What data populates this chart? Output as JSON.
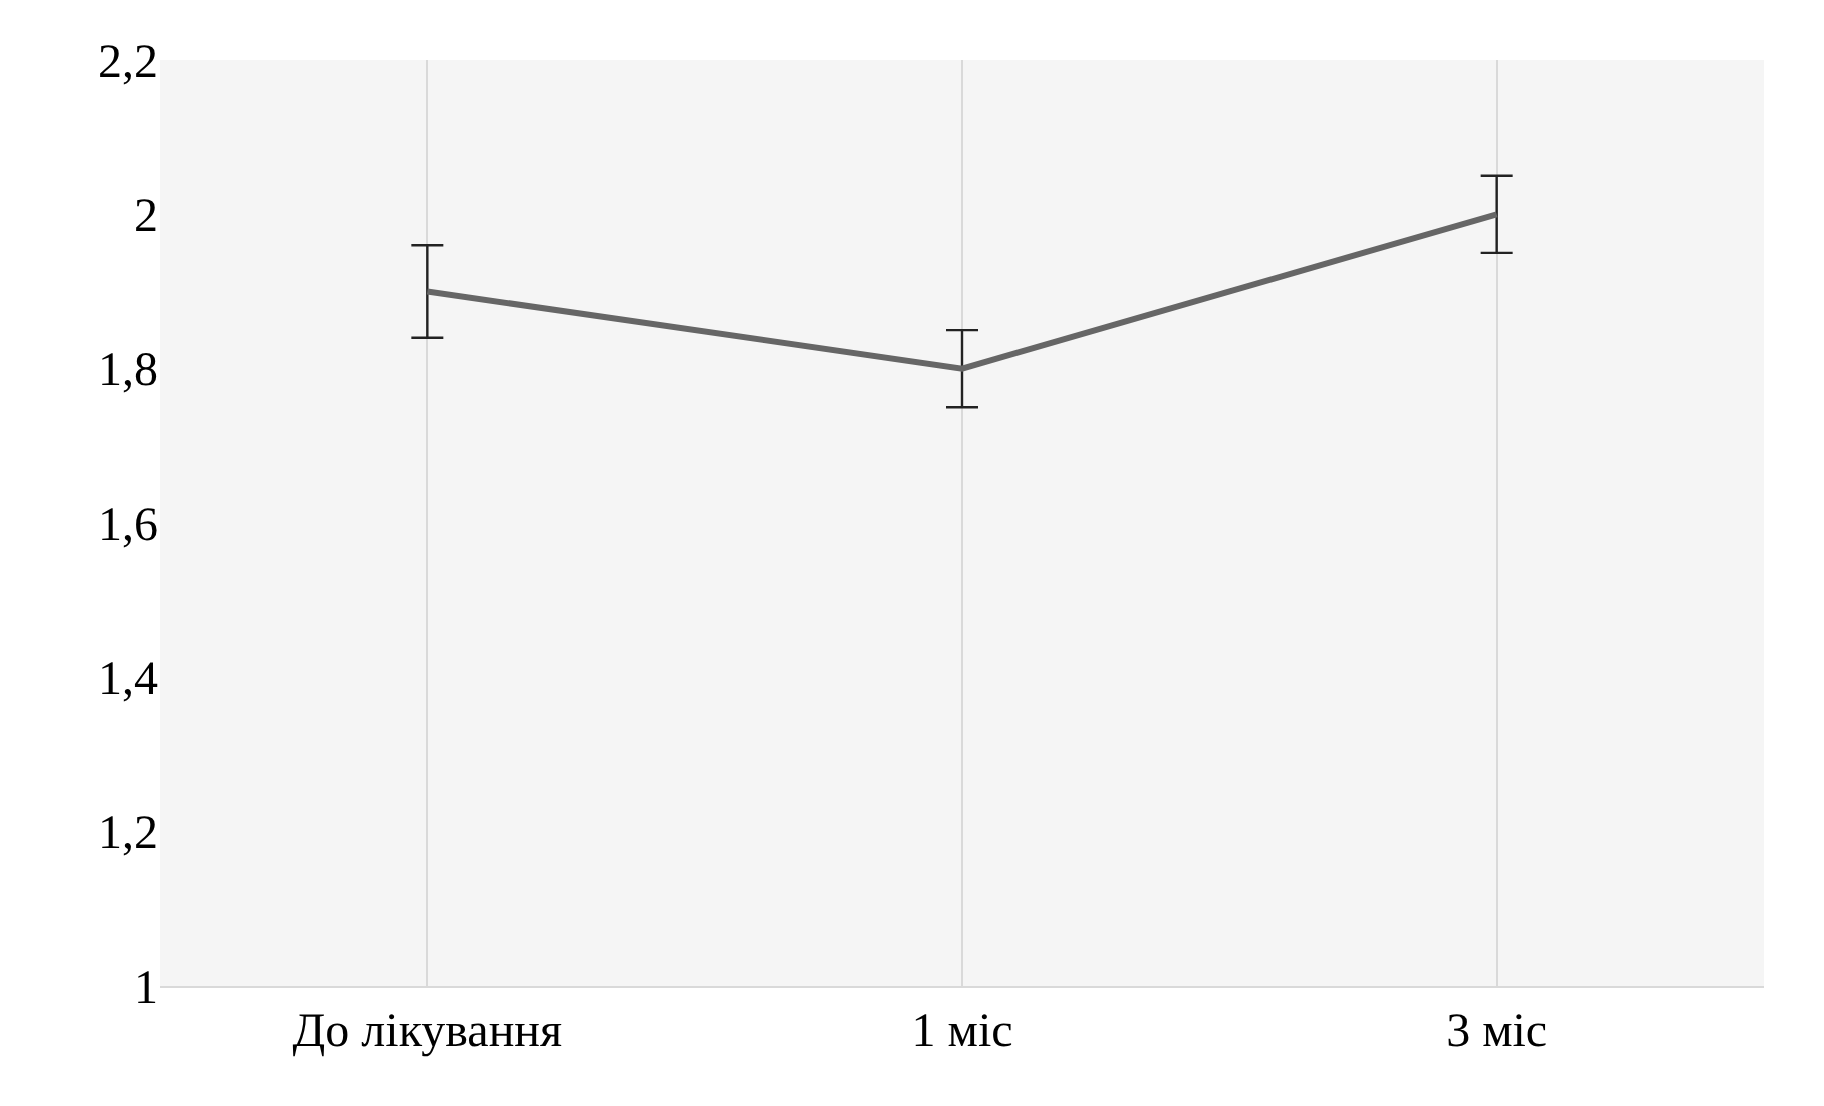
{
  "chart_data": {
    "type": "line",
    "categories": [
      "До лікування",
      "1 міс",
      "3 міс"
    ],
    "series": [
      {
        "color": "#666666",
        "values": [
          1.9,
          1.8,
          2.0
        ],
        "errors": [
          0.06,
          0.05,
          0.05
        ]
      }
    ],
    "ylim": [
      1,
      2.2
    ],
    "yticks": [
      {
        "value": 1,
        "label": "1"
      },
      {
        "value": 1.2,
        "label": "1,2"
      },
      {
        "value": 1.4,
        "label": "1,4"
      },
      {
        "value": 1.6,
        "label": "1,6"
      },
      {
        "value": 1.8,
        "label": "1,8"
      },
      {
        "value": 2,
        "label": "2"
      },
      {
        "value": 2.2,
        "label": "2,2"
      }
    ],
    "grid": "x",
    "marker": "none",
    "line_style": "solid"
  }
}
